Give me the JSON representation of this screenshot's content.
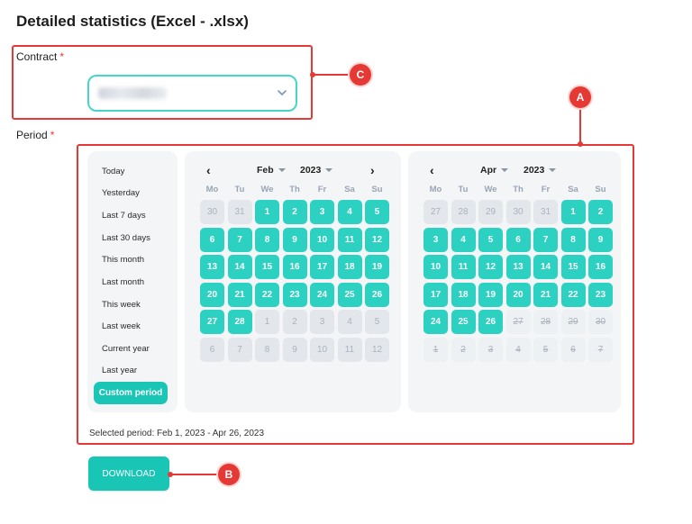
{
  "page": {
    "title": "Detailed statistics (Excel - .xlsx)"
  },
  "contract": {
    "label": "Contract",
    "required_mark": "*"
  },
  "period": {
    "label": "Period",
    "required_mark": "*"
  },
  "presets": [
    "Today",
    "Yesterday",
    "Last 7 days",
    "Last 30 days",
    "This month",
    "Last month",
    "This week",
    "Last week",
    "Current year",
    "Last year"
  ],
  "active_preset": "Custom period",
  "weekdays": [
    "Mo",
    "Tu",
    "We",
    "Th",
    "Fr",
    "Sa",
    "Su"
  ],
  "calendars": [
    {
      "month": "Feb",
      "year": "2023",
      "days": [
        [
          "30",
          "dim"
        ],
        [
          "31",
          "dim"
        ],
        [
          "1",
          "sel"
        ],
        [
          "2",
          "sel"
        ],
        [
          "3",
          "sel"
        ],
        [
          "4",
          "sel"
        ],
        [
          "5",
          "sel"
        ],
        [
          "6",
          "sel"
        ],
        [
          "7",
          "sel"
        ],
        [
          "8",
          "sel"
        ],
        [
          "9",
          "sel"
        ],
        [
          "10",
          "sel"
        ],
        [
          "11",
          "sel"
        ],
        [
          "12",
          "sel"
        ],
        [
          "13",
          "sel"
        ],
        [
          "14",
          "sel"
        ],
        [
          "15",
          "sel"
        ],
        [
          "16",
          "sel"
        ],
        [
          "17",
          "sel"
        ],
        [
          "18",
          "sel"
        ],
        [
          "19",
          "sel"
        ],
        [
          "20",
          "sel"
        ],
        [
          "21",
          "sel"
        ],
        [
          "22",
          "sel"
        ],
        [
          "23",
          "sel"
        ],
        [
          "24",
          "sel"
        ],
        [
          "25",
          "sel"
        ],
        [
          "26",
          "sel"
        ],
        [
          "27",
          "sel"
        ],
        [
          "28",
          "sel"
        ],
        [
          "1",
          "dim"
        ],
        [
          "2",
          "dim"
        ],
        [
          "3",
          "dim"
        ],
        [
          "4",
          "dim"
        ],
        [
          "5",
          "dim"
        ],
        [
          "6",
          "dim"
        ],
        [
          "7",
          "dim"
        ],
        [
          "8",
          "dim"
        ],
        [
          "9",
          "dim"
        ],
        [
          "10",
          "dim"
        ],
        [
          "11",
          "dim"
        ],
        [
          "12",
          "dim"
        ]
      ]
    },
    {
      "month": "Apr",
      "year": "2023",
      "days": [
        [
          "27",
          "dim"
        ],
        [
          "28",
          "dim"
        ],
        [
          "29",
          "dim"
        ],
        [
          "30",
          "dim"
        ],
        [
          "31",
          "dim"
        ],
        [
          "1",
          "sel"
        ],
        [
          "2",
          "sel"
        ],
        [
          "3",
          "sel"
        ],
        [
          "4",
          "sel"
        ],
        [
          "5",
          "sel"
        ],
        [
          "6",
          "sel"
        ],
        [
          "7",
          "sel"
        ],
        [
          "8",
          "sel"
        ],
        [
          "9",
          "sel"
        ],
        [
          "10",
          "sel"
        ],
        [
          "11",
          "sel"
        ],
        [
          "12",
          "sel"
        ],
        [
          "13",
          "sel"
        ],
        [
          "14",
          "sel"
        ],
        [
          "15",
          "sel"
        ],
        [
          "16",
          "sel"
        ],
        [
          "17",
          "sel"
        ],
        [
          "18",
          "sel"
        ],
        [
          "19",
          "sel"
        ],
        [
          "20",
          "sel"
        ],
        [
          "21",
          "sel"
        ],
        [
          "22",
          "sel"
        ],
        [
          "23",
          "sel"
        ],
        [
          "24",
          "sel"
        ],
        [
          "25",
          "sel"
        ],
        [
          "26",
          "sel"
        ],
        [
          "27",
          "strike"
        ],
        [
          "28",
          "strike"
        ],
        [
          "29",
          "strike"
        ],
        [
          "30",
          "strike"
        ],
        [
          "1",
          "strike"
        ],
        [
          "2",
          "strike"
        ],
        [
          "3",
          "strike"
        ],
        [
          "4",
          "strike"
        ],
        [
          "5",
          "strike"
        ],
        [
          "6",
          "strike"
        ],
        [
          "7",
          "strike"
        ]
      ]
    }
  ],
  "selected_period": "Selected period: Feb 1, 2023 - Apr 26, 2023",
  "download": {
    "label": "DOWNLOAD"
  },
  "annotations": {
    "a": "A",
    "b": "B",
    "c": "C"
  },
  "colors": {
    "accent": "#19c6b6",
    "annotation": "#e53935",
    "select_border": "#46d5c9"
  }
}
